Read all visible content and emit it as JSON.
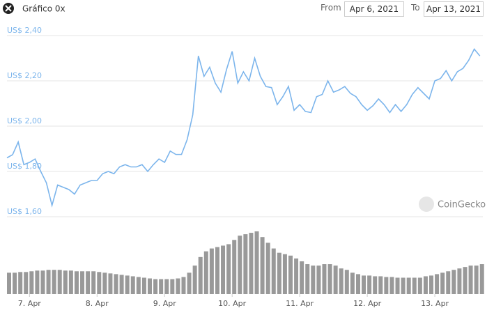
{
  "header": {
    "title": "Gráfico 0x",
    "from_label": "From",
    "from_date": "Apr 6, 2021",
    "to_label": "To",
    "to_date": "Apr 13, 2021"
  },
  "chart_data": {
    "type": "line",
    "categories": [
      null,
      null,
      null,
      null,
      "7. Apr",
      null,
      null,
      null,
      null,
      null,
      null,
      null,
      null,
      null,
      null,
      null,
      "8. Apr",
      null,
      null,
      null,
      null,
      null,
      null,
      null,
      null,
      null,
      null,
      null,
      "9. Apr",
      null,
      null,
      null,
      null,
      null,
      null,
      null,
      null,
      null,
      null,
      null,
      "10. Apr",
      null,
      null,
      null,
      null,
      null,
      null,
      null,
      null,
      null,
      null,
      null,
      "11. Apr",
      null,
      null,
      null,
      null,
      null,
      null,
      null,
      null,
      null,
      null,
      null,
      "12. Apr",
      null,
      null,
      null,
      null,
      null,
      null,
      null,
      null,
      null,
      null,
      null,
      "13. Apr",
      null,
      null,
      null,
      null,
      null,
      null,
      null,
      null
    ],
    "series": [
      {
        "type": "line",
        "color": "#7cb5ec",
        "values": [
          1.86,
          1.874,
          1.93,
          1.83,
          1.84,
          1.855,
          1.8,
          1.75,
          1.65,
          1.74,
          1.73,
          1.72,
          1.7,
          1.74,
          1.75,
          1.76,
          1.76,
          1.79,
          1.8,
          1.79,
          1.82,
          1.83,
          1.82,
          1.82,
          1.83,
          1.8,
          1.83,
          1.855,
          1.84,
          1.89,
          1.875,
          1.875,
          1.94,
          2.05,
          2.31,
          2.22,
          2.26,
          2.19,
          2.15,
          2.25,
          2.33,
          2.19,
          2.24,
          2.2,
          2.3,
          2.22,
          2.175,
          2.17,
          2.095,
          2.13,
          2.175,
          2.07,
          2.095,
          2.065,
          2.06,
          2.13,
          2.14,
          2.2,
          2.15,
          2.16,
          2.175,
          2.145,
          2.13,
          2.095,
          2.07,
          2.09,
          2.12,
          2.095,
          2.06,
          2.095,
          2.065,
          2.095,
          2.14,
          2.17,
          2.145,
          2.12,
          2.2,
          2.21,
          2.245,
          2.2,
          2.24,
          2.255,
          2.29,
          2.34,
          2.31
        ]
      },
      {
        "type": "bar",
        "color": "#999999",
        "values": [
          30,
          30,
          31,
          31,
          32,
          33,
          33,
          34,
          34,
          34,
          33,
          33,
          32,
          32,
          32,
          32,
          31,
          30,
          29,
          28,
          27,
          26,
          25,
          24,
          23,
          22,
          21,
          21,
          21,
          21,
          22,
          24,
          30,
          40,
          52,
          60,
          64,
          66,
          68,
          70,
          76,
          82,
          84,
          86,
          88,
          80,
          72,
          64,
          58,
          56,
          54,
          50,
          46,
          42,
          40,
          40,
          42,
          42,
          40,
          36,
          34,
          30,
          28,
          26,
          26,
          25,
          25,
          24,
          24,
          23,
          23,
          23,
          23,
          23,
          25,
          26,
          28,
          30,
          32,
          34,
          36,
          38,
          40,
          40,
          42
        ]
      }
    ],
    "ylim": [
      1.55,
      2.45
    ],
    "yticks": [
      {
        "value": 1.6,
        "label": "US$ 1,60"
      },
      {
        "value": 1.8,
        "label": "US$ 1,80"
      },
      {
        "value": 2.0,
        "label": "US$ 2,00"
      },
      {
        "value": 2.2,
        "label": "US$ 2,20"
      },
      {
        "value": 2.4,
        "label": "US$ 2,40"
      }
    ],
    "grid": true,
    "watermark": "CoinGecko"
  }
}
